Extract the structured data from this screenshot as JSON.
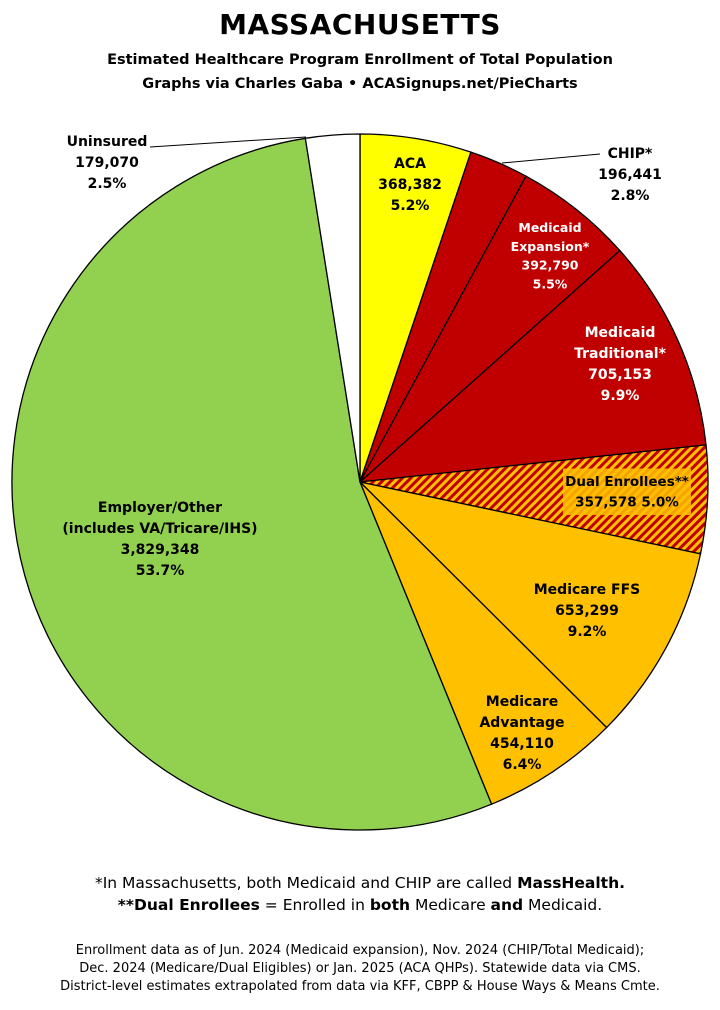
{
  "header": {
    "title": "MASSACHUSETTS",
    "subtitle_line1": "Estimated Healthcare Program Enrollment of Total Population",
    "subtitle_line2": "Graphs via Charles Gaba  •  ACASignups.net/PieCharts"
  },
  "chart_data": {
    "type": "pie",
    "start": "12 o'clock",
    "direction": "clockwise",
    "slices": [
      {
        "key": "aca",
        "lines": [
          "ACA",
          "368,382",
          "5.2%"
        ],
        "value": 368382,
        "percent": 5.2,
        "color": "#FFFF00",
        "text_color": "#000000"
      },
      {
        "key": "chip",
        "lines": [
          "CHIP*",
          "196,441",
          "2.8%"
        ],
        "value": 196441,
        "percent": 2.8,
        "color": "#C00000",
        "text_color": "#000000"
      },
      {
        "key": "medicaid_expansion",
        "lines": [
          "Medicaid",
          "Expansion*",
          "392,790",
          "5.5%"
        ],
        "value": 392790,
        "percent": 5.5,
        "color": "#C00000",
        "text_color": "#FFFFFF"
      },
      {
        "key": "medicaid_traditional",
        "lines": [
          "Medicaid",
          "Traditional*",
          "705,153",
          "9.9%"
        ],
        "value": 705153,
        "percent": 9.9,
        "color": "#C00000",
        "text_color": "#FFFFFF"
      },
      {
        "key": "dual_enrollees",
        "lines": [
          "Dual Enrollees**",
          "357,578 5.0%"
        ],
        "value": 357578,
        "percent": 5.0,
        "color": "#C00000",
        "pattern_color": "#FFC000",
        "text_color": "#000000"
      },
      {
        "key": "medicare_ffs",
        "lines": [
          "Medicare FFS",
          "653,299",
          "9.2%"
        ],
        "value": 653299,
        "percent": 9.2,
        "color": "#FFC000",
        "text_color": "#000000"
      },
      {
        "key": "medicare_advantage",
        "lines": [
          "Medicare",
          "Advantage",
          "454,110",
          "6.4%"
        ],
        "value": 454110,
        "percent": 6.4,
        "color": "#FFC000",
        "text_color": "#000000"
      },
      {
        "key": "employer_other",
        "lines": [
          "Employer/Other",
          "(includes VA/Tricare/IHS)",
          "3,829,348",
          "53.7%"
        ],
        "value": 3829348,
        "percent": 53.7,
        "color": "#92D050",
        "text_color": "#000000"
      },
      {
        "key": "uninsured",
        "lines": [
          "Uninsured",
          "179,070",
          "2.5%"
        ],
        "value": 179070,
        "percent": 2.5,
        "color": "#FFFFFF",
        "text_color": "#000000"
      }
    ]
  },
  "footnotes": {
    "line1_pre": "*In Massachusetts, both Medicaid and CHIP are called ",
    "line1_bold": "MassHealth.",
    "line2_bold1": "**Dual Enrollees",
    "line2_mid1": " = Enrolled in ",
    "line2_bold2": "both",
    "line2_mid2": " Medicare ",
    "line2_bold3": "and",
    "line2_end": " Medicaid."
  },
  "source": {
    "line1": "Enrollment data as of Jun. 2024 (Medicaid expansion), Nov. 2024 (CHIP/Total Medicaid);",
    "line2": "Dec. 2024 (Medicare/Dual Eligibles) or Jan. 2025 (ACA QHPs). Statewide data via CMS.",
    "line3": "District-level estimates extrapolated from data via KFF, CBPP & House Ways & Means Cmte."
  }
}
